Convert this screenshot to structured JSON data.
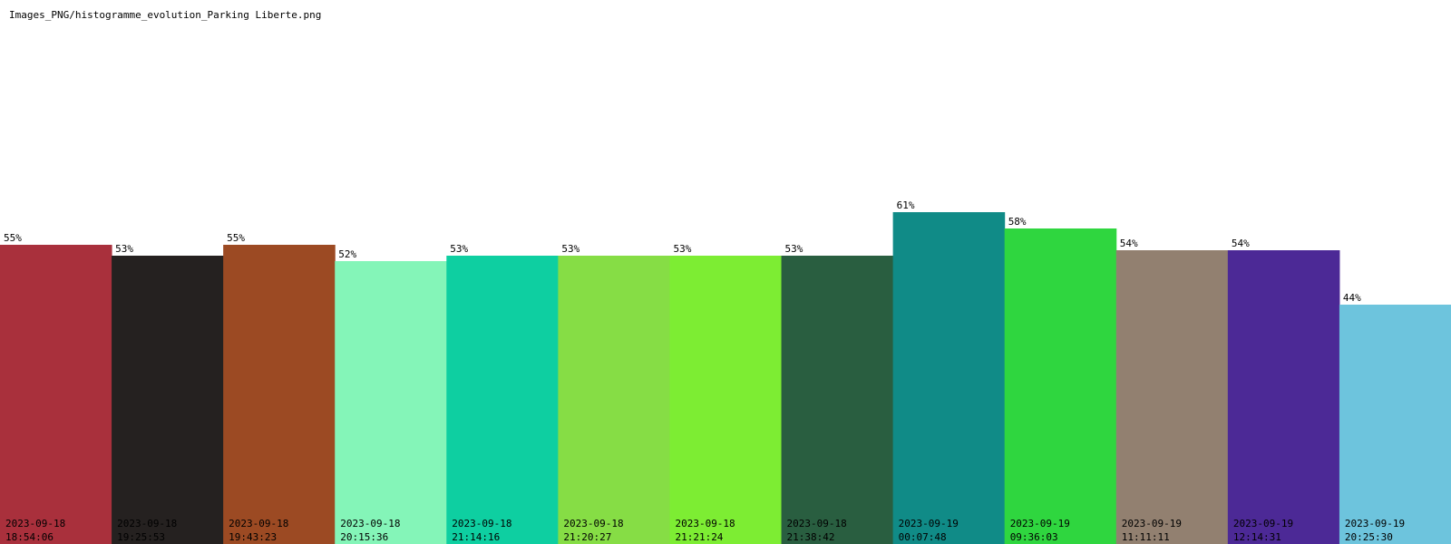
{
  "page": {
    "title": "Images_PNG/histogramme_evolution_Parking Liberte.png"
  },
  "chart_data": {
    "type": "bar",
    "title": "",
    "xlabel": "",
    "ylabel": "",
    "ylim": [
      0,
      100
    ],
    "grid": false,
    "legend": "none",
    "value_suffix": "%",
    "categories": [
      {
        "date": "2023-09-18",
        "time": "18:54:06"
      },
      {
        "date": "2023-09-18",
        "time": "19:25:53"
      },
      {
        "date": "2023-09-18",
        "time": "19:43:23"
      },
      {
        "date": "2023-09-18",
        "time": "20:15:36"
      },
      {
        "date": "2023-09-18",
        "time": "21:14:16"
      },
      {
        "date": "2023-09-18",
        "time": "21:20:27"
      },
      {
        "date": "2023-09-18",
        "time": "21:21:24"
      },
      {
        "date": "2023-09-18",
        "time": "21:38:42"
      },
      {
        "date": "2023-09-19",
        "time": "00:07:48"
      },
      {
        "date": "2023-09-19",
        "time": "09:36:03"
      },
      {
        "date": "2023-09-19",
        "time": "11:11:11"
      },
      {
        "date": "2023-09-19",
        "time": "12:14:31"
      },
      {
        "date": "2023-09-19",
        "time": "20:25:30"
      }
    ],
    "values": [
      55,
      53,
      55,
      52,
      53,
      53,
      53,
      53,
      61,
      58,
      54,
      54,
      44
    ],
    "colors": [
      "#a9303c",
      "#252120",
      "#9c4a23",
      "#84f5b8",
      "#0ecfa1",
      "#86dd45",
      "#7ded33",
      "#295e40",
      "#108b87",
      "#2fd63f",
      "#928070",
      "#4c2996",
      "#6dc4dd"
    ]
  }
}
